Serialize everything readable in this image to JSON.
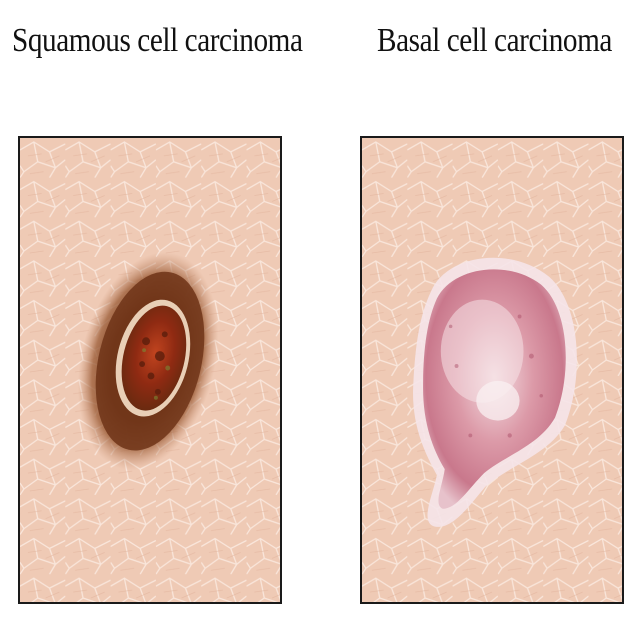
{
  "labels": {
    "left": "Squamous cell carcinoma",
    "right": "Basal cell carcinoma"
  },
  "colors": {
    "skin": "#f0cdb9",
    "skin_line": "#fff2ea",
    "scc_outer": "#8a4a26",
    "scc_inner": "#a8361a",
    "bcc_body": "#d88c9c",
    "bcc_rim": "#f3dde4"
  },
  "icons": {
    "left_image": "squamous-lesion-illustration",
    "right_image": "basal-lesion-illustration"
  }
}
